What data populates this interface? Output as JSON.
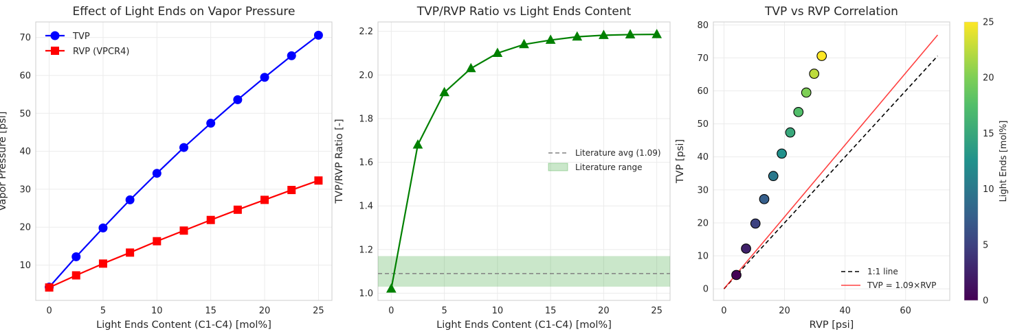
{
  "chart_data": [
    {
      "type": "line",
      "title": "Effect of Light Ends on Vapor Pressure",
      "xlabel": "Light Ends Content (C1-C4) [mol%]",
      "ylabel": "Vapor Pressure [psi]",
      "xlim": [
        -1.25,
        26.25
      ],
      "ylim": [
        0.7,
        74.1
      ],
      "xticks": [
        0,
        5,
        10,
        15,
        20,
        25
      ],
      "yticks": [
        10,
        20,
        30,
        40,
        50,
        60,
        70
      ],
      "grid": true,
      "legend_position": "upper-left",
      "x": [
        0,
        2.5,
        5,
        7.5,
        10,
        12.5,
        15,
        17.5,
        20,
        22.5,
        25
      ],
      "series": [
        {
          "name": "TVP",
          "color": "#0000ff",
          "marker": "circle",
          "values": [
            4.2,
            12.2,
            19.8,
            27.2,
            34.2,
            41.0,
            47.4,
            53.6,
            59.5,
            65.2,
            70.6
          ]
        },
        {
          "name": "RVP (VPCR4)",
          "color": "#ff0000",
          "marker": "square",
          "values": [
            4.1,
            7.3,
            10.4,
            13.3,
            16.3,
            19.1,
            21.9,
            24.6,
            27.2,
            29.8,
            32.3
          ]
        }
      ]
    },
    {
      "type": "line",
      "title": "TVP/RVP Ratio vs Light Ends Content",
      "xlabel": "Light Ends Content (C1-C4) [mol%]",
      "ylabel": "TVP/RVP Ratio [-]",
      "xlim": [
        -1.25,
        26.25
      ],
      "ylim": [
        0.967,
        2.243
      ],
      "xticks": [
        0,
        5,
        10,
        15,
        20,
        25
      ],
      "yticks": [
        1.0,
        1.2,
        1.4,
        1.6,
        1.8,
        2.0,
        2.2
      ],
      "ytick_labels": [
        "1.0",
        "1.2",
        "1.4",
        "1.6",
        "1.8",
        "2.0",
        "2.2"
      ],
      "grid": true,
      "legend_position": "center-right",
      "x": [
        0,
        2.5,
        5,
        7.5,
        10,
        12.5,
        15,
        17.5,
        20,
        22.5,
        25
      ],
      "series": [
        {
          "name": "",
          "color": "#008000",
          "marker": "triangle",
          "values": [
            1.02,
            1.68,
            1.92,
            2.03,
            2.1,
            2.14,
            2.16,
            2.175,
            2.182,
            2.185,
            2.186
          ]
        }
      ],
      "reference_line": {
        "name": "Literature avg (1.09)",
        "y": 1.09,
        "color": "#808080"
      },
      "reference_band": {
        "name": "Literature range",
        "y_low": 1.03,
        "y_high": 1.17,
        "color": "#2ca02c"
      }
    },
    {
      "type": "scatter",
      "title": "TVP vs RVP Correlation",
      "xlabel": "RVP [psi]",
      "ylabel": "TVP [psi]",
      "xlim": [
        -3.5,
        74.6
      ],
      "ylim": [
        -3.5,
        80.9
      ],
      "xticks": [
        0,
        20,
        40,
        60
      ],
      "yticks": [
        0,
        10,
        20,
        30,
        40,
        50,
        60,
        70,
        80
      ],
      "grid": true,
      "legend_position": "lower-right",
      "points": [
        {
          "rvp": 4.1,
          "tvp": 4.2,
          "light_ends": 0
        },
        {
          "rvp": 7.3,
          "tvp": 12.2,
          "light_ends": 2.5
        },
        {
          "rvp": 10.4,
          "tvp": 19.8,
          "light_ends": 5
        },
        {
          "rvp": 13.3,
          "tvp": 27.2,
          "light_ends": 7.5
        },
        {
          "rvp": 16.3,
          "tvp": 34.2,
          "light_ends": 10
        },
        {
          "rvp": 19.1,
          "tvp": 41.0,
          "light_ends": 12.5
        },
        {
          "rvp": 21.9,
          "tvp": 47.4,
          "light_ends": 15
        },
        {
          "rvp": 24.6,
          "tvp": 53.6,
          "light_ends": 17.5
        },
        {
          "rvp": 27.2,
          "tvp": 59.5,
          "light_ends": 20
        },
        {
          "rvp": 29.8,
          "tvp": 65.2,
          "light_ends": 22.5
        },
        {
          "rvp": 32.3,
          "tvp": 70.6,
          "light_ends": 25
        }
      ],
      "lines": [
        {
          "name": "1:1 line",
          "color": "#000000",
          "style": "dashed",
          "slope": 1.0,
          "x_range": [
            0,
            70.6
          ]
        },
        {
          "name": "TVP = 1.09×RVP",
          "color": "#ff0000",
          "style": "solid",
          "slope": 1.09,
          "x_range": [
            0,
            70.6
          ]
        }
      ],
      "colorbar": {
        "label": "Light Ends [mol%]",
        "colormap": "viridis",
        "range": [
          0,
          25
        ],
        "ticks": [
          0,
          5,
          10,
          15,
          20,
          25
        ]
      }
    }
  ]
}
